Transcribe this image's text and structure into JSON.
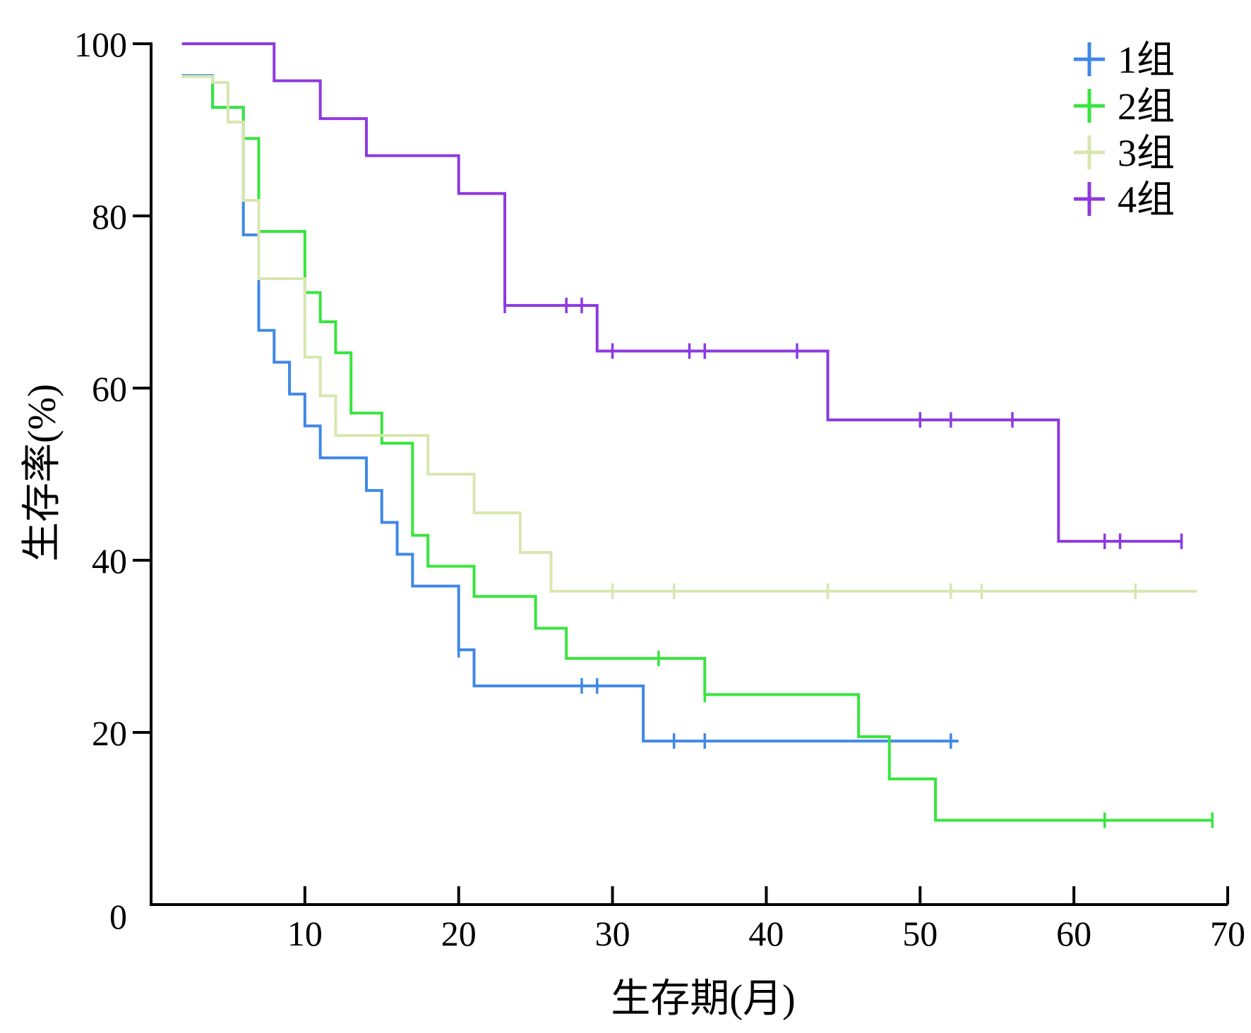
{
  "chart_data": {
    "type": "line",
    "subtype": "kaplan-meier step",
    "title": "",
    "xlabel": "生存期(月)",
    "ylabel": "生存率(%)",
    "xlim": [
      0,
      70
    ],
    "ylim": [
      0,
      100
    ],
    "xticks": [
      10,
      20,
      30,
      40,
      50,
      60,
      70
    ],
    "yticks": [
      0,
      20,
      40,
      60,
      80,
      100
    ],
    "x_origin_label": "",
    "grid": false,
    "legend": "top-right",
    "series": [
      {
        "name": "1组",
        "color": "#3f88e6",
        "steps": [
          [
            2,
            96.3
          ],
          [
            4,
            92.6
          ],
          [
            6,
            77.8
          ],
          [
            7,
            66.7
          ],
          [
            8,
            63.0
          ],
          [
            9,
            59.3
          ],
          [
            10,
            55.6
          ],
          [
            11,
            51.9
          ],
          [
            14,
            48.1
          ],
          [
            15,
            44.4
          ],
          [
            16,
            40.7
          ],
          [
            17,
            37.0
          ],
          [
            20,
            29.6
          ],
          [
            21,
            25.4
          ],
          [
            32,
            19.0
          ]
        ],
        "end": 52.5,
        "censored": [
          [
            20,
            29.6
          ],
          [
            28,
            25.4
          ],
          [
            29,
            25.4
          ],
          [
            34,
            19.0
          ],
          [
            36,
            19.0
          ],
          [
            52,
            19.0
          ]
        ]
      },
      {
        "name": "2组",
        "color": "#38e53d",
        "steps": [
          [
            2,
            96.2
          ],
          [
            4,
            92.6
          ],
          [
            6,
            89.0
          ],
          [
            7,
            78.2
          ],
          [
            10,
            71.1
          ],
          [
            11,
            67.7
          ],
          [
            12,
            64.1
          ],
          [
            13,
            57.1
          ],
          [
            15,
            53.6
          ],
          [
            17,
            42.9
          ],
          [
            18,
            39.3
          ],
          [
            21,
            35.8
          ],
          [
            25,
            32.1
          ],
          [
            27,
            28.6
          ],
          [
            36,
            24.4
          ],
          [
            46,
            19.5
          ],
          [
            48,
            14.6
          ],
          [
            51,
            9.8
          ]
        ],
        "end": 69,
        "censored": [
          [
            33,
            28.6
          ],
          [
            36,
            24.4
          ],
          [
            62,
            9.8
          ],
          [
            69,
            9.8
          ]
        ]
      },
      {
        "name": "3组",
        "color": "#d8e6b0",
        "steps": [
          [
            2,
            96.2
          ],
          [
            4,
            95.5
          ],
          [
            5,
            90.9
          ],
          [
            6,
            81.8
          ],
          [
            7,
            72.7
          ],
          [
            10,
            63.6
          ],
          [
            11,
            59.1
          ],
          [
            12,
            54.5
          ],
          [
            18,
            50.0
          ],
          [
            21,
            45.5
          ],
          [
            24,
            40.9
          ],
          [
            26,
            36.4
          ]
        ],
        "end": 68,
        "censored": [
          [
            30,
            36.4
          ],
          [
            34,
            36.4
          ],
          [
            44,
            36.4
          ],
          [
            52,
            36.4
          ],
          [
            54,
            36.4
          ],
          [
            64,
            36.4
          ]
        ]
      },
      {
        "name": "4组",
        "color": "#8d39e0",
        "steps": [
          [
            2,
            100
          ],
          [
            8,
            95.7
          ],
          [
            11,
            91.3
          ],
          [
            14,
            87.0
          ],
          [
            20,
            82.6
          ],
          [
            23,
            69.6
          ],
          [
            29,
            64.3
          ],
          [
            44,
            56.3
          ],
          [
            59,
            42.2
          ]
        ],
        "end": 67,
        "censored": [
          [
            23,
            69.6
          ],
          [
            27,
            69.6
          ],
          [
            28,
            69.6
          ],
          [
            30,
            64.3
          ],
          [
            35,
            64.3
          ],
          [
            36,
            64.3
          ],
          [
            42,
            64.3
          ],
          [
            50,
            56.3
          ],
          [
            52,
            56.3
          ],
          [
            56,
            56.3
          ],
          [
            62,
            42.2
          ],
          [
            63,
            42.2
          ],
          [
            67,
            42.2
          ]
        ]
      }
    ]
  }
}
